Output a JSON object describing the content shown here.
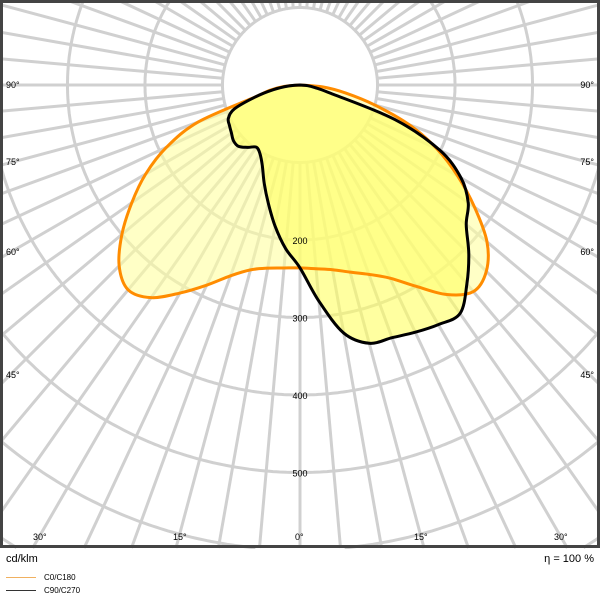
{
  "chart_data": {
    "type": "polar",
    "unit_label": "cd/klm",
    "efficiency_label": "η = 100 %",
    "radial_ticks": [
      200,
      300,
      400,
      500
    ],
    "angle_labels_left": [
      "90°",
      "75°",
      "60°",
      "45°",
      "30°",
      "15°"
    ],
    "angle_labels_bottom": [
      "30°",
      "15°",
      "0°",
      "15°",
      "30°"
    ],
    "angle_labels_right": [
      "90°",
      "75°",
      "60°",
      "45°"
    ],
    "grid": true,
    "angle_step_deg": 5,
    "radial_step": 100,
    "series": [
      {
        "name": "C0/C180",
        "color": "#ff8c00",
        "fill": "#ffffa0",
        "angles": [
          -90,
          -85,
          -80,
          -75,
          -70,
          -65,
          -60,
          -55,
          -50,
          -45,
          -40,
          -35,
          -30,
          -25,
          -20,
          -15,
          -10,
          -5,
          0,
          5,
          10,
          15,
          20,
          25,
          30,
          35,
          40,
          45,
          50,
          55,
          60,
          65,
          70,
          75,
          80,
          85,
          90
        ],
        "values": [
          0,
          20,
          40,
          60,
          140,
          190,
          230,
          265,
          300,
          330,
          345,
          335,
          310,
          285,
          262,
          247,
          240,
          237,
          236,
          238,
          242,
          250,
          260,
          275,
          300,
          330,
          348,
          340,
          315,
          275,
          235,
          195,
          150,
          100,
          60,
          30,
          0
        ]
      },
      {
        "name": "C90/C270",
        "color": "#000000",
        "fill": "#ffff60",
        "angles": [
          -90,
          -85,
          -80,
          -75,
          -70,
          -65,
          -60,
          -55,
          -50,
          -45,
          -40,
          -35,
          -30,
          -25,
          -20,
          -15,
          -10,
          -5,
          0,
          5,
          10,
          15,
          20,
          25,
          30,
          35,
          40,
          45,
          50,
          55,
          60,
          65,
          70,
          75,
          80,
          85,
          90
        ],
        "values": [
          0,
          15,
          35,
          60,
          90,
          102,
          105,
          108,
          112,
          112,
          105,
          98,
          103,
          115,
          135,
          158,
          185,
          212,
          236,
          280,
          325,
          345,
          347,
          352,
          357,
          360,
          335,
          308,
          280,
          265,
          240,
          199,
          130,
          40,
          20,
          10,
          0
        ]
      }
    ]
  }
}
